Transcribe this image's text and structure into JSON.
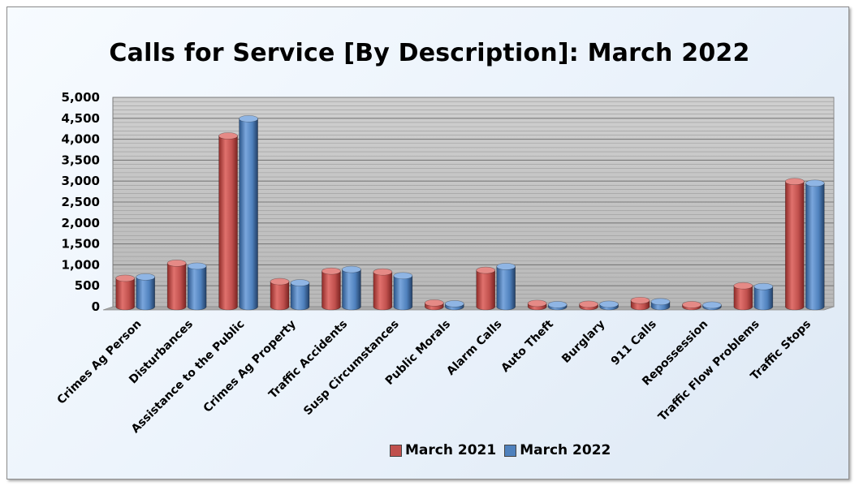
{
  "chart_data": {
    "type": "bar",
    "title": "Calls for Service [By Description]: March 2022",
    "categories": [
      "Crimes Ag Person",
      "Disturbances",
      "Assistance to the Public",
      "Crimes Ag Property",
      "Traffic Accidents",
      "Susp Circumstances",
      "Public Morals",
      "Alarm Calls",
      "Auto Theft",
      "Burglary",
      "911 Calls",
      "Repossession",
      "Traffic Flow Problems",
      "Traffic Stops"
    ],
    "series": [
      {
        "name": "March 2021",
        "color": "#c0504d",
        "values": [
          680,
          1040,
          4080,
          600,
          850,
          830,
          90,
          870,
          80,
          60,
          150,
          50,
          500,
          2990
        ]
      },
      {
        "name": "March 2022",
        "color": "#4f81bd",
        "values": [
          710,
          970,
          4490,
          570,
          890,
          740,
          70,
          960,
          50,
          60,
          120,
          40,
          480,
          2950
        ]
      }
    ],
    "ylim": [
      0,
      5000
    ],
    "yticks": [
      "0",
      "500",
      "1,000",
      "1,500",
      "2,000",
      "2,500",
      "3,000",
      "3,500",
      "4,000",
      "4,500",
      "5,000"
    ],
    "grid": true,
    "legend_position": "bottom"
  }
}
